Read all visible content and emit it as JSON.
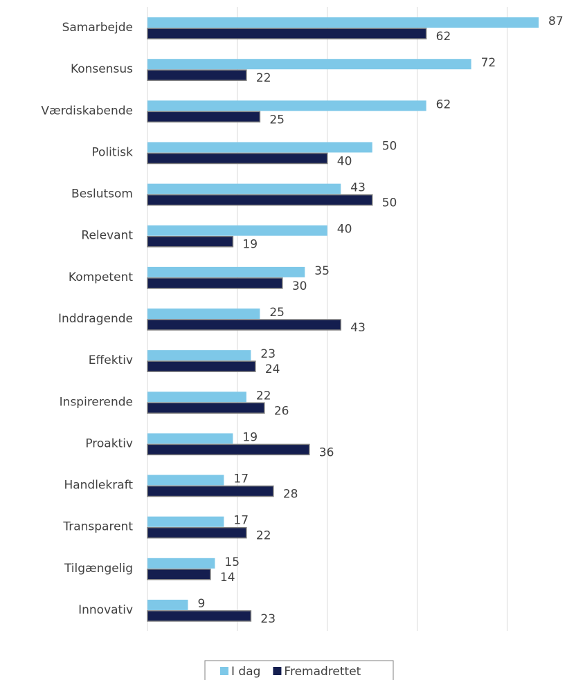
{
  "chart_data": {
    "type": "hbar",
    "categories": [
      "Samarbejde",
      "Konsensus",
      "Værdiskabende",
      "Politisk",
      "Beslutsom",
      "Relevant",
      "Kompetent",
      "Inddragende",
      "Effektiv",
      "Inspirerende",
      "Proaktiv",
      "Handlekraft",
      "Transparent",
      "Tilgængelig",
      "Innovativ"
    ],
    "series": [
      {
        "name": "I dag",
        "color": "#7ec8e8",
        "values": [
          87,
          72,
          62,
          50,
          43,
          40,
          35,
          25,
          23,
          22,
          19,
          17,
          17,
          15,
          9
        ]
      },
      {
        "name": "Fremadrettet",
        "color": "#141e4f",
        "values": [
          62,
          22,
          25,
          40,
          50,
          19,
          30,
          43,
          24,
          26,
          36,
          28,
          22,
          14,
          23
        ]
      }
    ],
    "xlim": [
      0,
      93
    ],
    "xticks": [
      0,
      20,
      40,
      60,
      80
    ],
    "grid": true
  }
}
